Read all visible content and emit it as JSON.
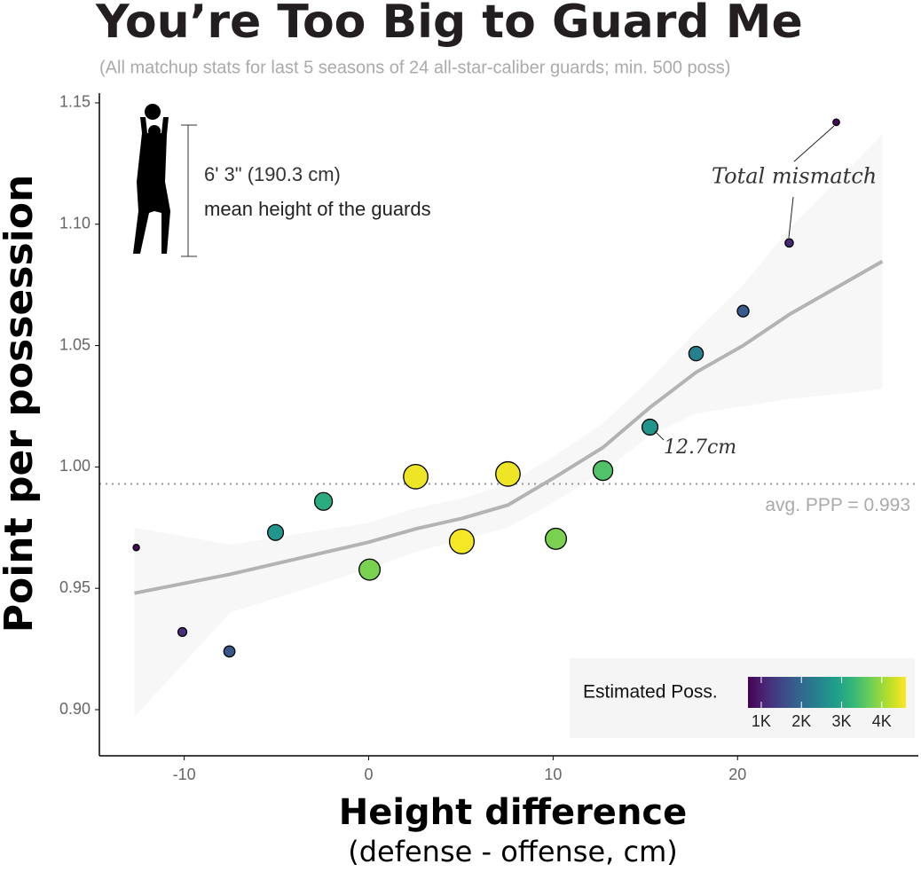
{
  "chart_data": {
    "type": "scatter",
    "title": "You’re Too Big to Guard Me",
    "subtitle": "(All matchup stats for last 5 seasons of 24 all-star-caliber guards; min. 500 poss)",
    "y_label": "Point per possession",
    "x_label": "Height difference",
    "x_sublabel": "(defense - offense, cm)",
    "x": [
      -12.6,
      -10.1,
      -7.55,
      -5.05,
      -2.45,
      0.05,
      2.55,
      5.05,
      7.55,
      10.15,
      12.7,
      15.25,
      17.75,
      20.3,
      22.8,
      25.35
    ],
    "values": [
      0.9668,
      0.932,
      0.924,
      0.973,
      0.9858,
      0.9577,
      0.996,
      0.9693,
      0.9971,
      0.9704,
      0.9985,
      1.0164,
      1.0467,
      1.0642,
      1.0923,
      1.142
    ],
    "sizes": [
      700,
      1200,
      1700,
      2700,
      3100,
      3800,
      4500,
      4550,
      4500,
      3800,
      3500,
      2700,
      2400,
      1800,
      1100,
      750
    ],
    "xlim": [
      -14.6,
      29.8
    ],
    "ylim": [
      0.881,
      1.154
    ],
    "xticks": [
      -10,
      0,
      10,
      20
    ],
    "yticks": [
      1.15,
      {
        "value": 1.1,
        "label": "1.10"
      },
      1.05,
      {
        "value": 1.0,
        "label": "1.00"
      },
      0.95,
      {
        "value": 0.9,
        "label": "0.90"
      }
    ],
    "trend": {
      "color": "#b3b3b3",
      "band_color": "#f7f7f7",
      "x": [
        -12.7,
        -7.5,
        0,
        2.55,
        5.05,
        7.55,
        10.15,
        12.7,
        15.25,
        17.75,
        20.3,
        22.8,
        27.85
      ],
      "values": [
        0.948,
        0.9558,
        0.969,
        0.9745,
        0.9788,
        0.9843,
        0.996,
        1.008,
        1.0245,
        1.039,
        1.05,
        1.0628,
        1.0847
      ],
      "upper": [
        0.975,
        0.968,
        0.977,
        0.983,
        0.987,
        0.993,
        1.005,
        1.018,
        1.036,
        1.056,
        1.075,
        1.098,
        1.137
      ],
      "lower": [
        0.897,
        0.94,
        0.958,
        0.965,
        0.97,
        0.975,
        0.986,
        0.998,
        1.013,
        1.022,
        1.025,
        1.028,
        1.032
      ]
    },
    "avg_line": {
      "value": 0.993,
      "label": "avg. PPP = 0.993"
    },
    "colorbar": {
      "title": "Estimated Poss.",
      "lim": [
        670,
        4600
      ],
      "ticks": [
        {
          "value": 1000,
          "label": "1K"
        },
        {
          "value": 2000,
          "label": "2K"
        },
        {
          "value": 3000,
          "label": "3K"
        },
        {
          "value": 4000,
          "label": "4K"
        }
      ]
    },
    "colormap": [
      "#440154",
      "#482878",
      "#3e4989",
      "#31688e",
      "#26828e",
      "#1f9e89",
      "#35b779",
      "#6ece58",
      "#b5de2b",
      "#fde725"
    ],
    "annotations": {
      "mismatch": "Total mismatch",
      "diff": "12.7cm",
      "height": "6' 3\" (190.3 cm)",
      "height_note": "mean height of the guards"
    }
  }
}
